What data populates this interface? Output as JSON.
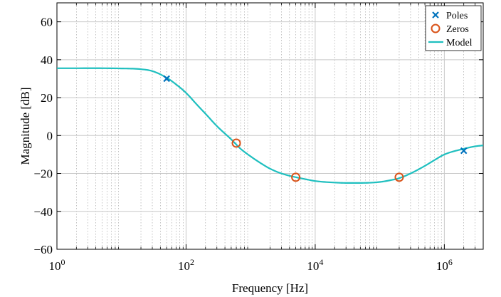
{
  "chart_data": {
    "type": "line",
    "xscale": "log",
    "xlim": [
      1,
      4000000
    ],
    "ylim": [
      -60,
      70
    ],
    "xticks": [
      {
        "value": 1,
        "base": "10",
        "exp": "0"
      },
      {
        "value": 100,
        "base": "10",
        "exp": "2"
      },
      {
        "value": 10000,
        "base": "10",
        "exp": "4"
      },
      {
        "value": 1000000,
        "base": "10",
        "exp": "6"
      }
    ],
    "yticks": [
      "-60",
      "-40",
      "-20",
      "0",
      "20",
      "40",
      "60"
    ],
    "xlabel": "Frequency [Hz]",
    "ylabel": "Magnitude [dB]",
    "grid": true,
    "legend_position": "top-right",
    "colors": {
      "poles": "#0072BD",
      "zeros": "#D95319",
      "model": "#1FBFBF"
    },
    "legend": [
      {
        "key": "poles",
        "label": "Poles"
      },
      {
        "key": "zeros",
        "label": "Zeros"
      },
      {
        "key": "model",
        "label": "Model"
      }
    ],
    "poles": [
      {
        "x": 50,
        "y": 30
      },
      {
        "x": 2000000,
        "y": -8
      }
    ],
    "zeros": [
      {
        "x": 600,
        "y": -4
      },
      {
        "x": 5000,
        "y": -22
      },
      {
        "x": 200000,
        "y": -22
      }
    ],
    "model": {
      "x": [
        1,
        10,
        20,
        30,
        50,
        70,
        100,
        150,
        200,
        300,
        500,
        700,
        1000,
        1500,
        2000,
        3000,
        5000,
        7000,
        10000,
        20000,
        30000,
        50000,
        100000,
        150000,
        200000,
        300000,
        500000,
        700000,
        1000000,
        2000000,
        3000000,
        4000000
      ],
      "y": [
        35.5,
        35.4,
        35,
        34,
        30.5,
        27,
        22.5,
        16,
        11.5,
        5,
        -2,
        -7,
        -11,
        -15,
        -17.5,
        -20,
        -22,
        -23,
        -24,
        -24.8,
        -25,
        -25,
        -24.5,
        -23.5,
        -22.5,
        -20,
        -16,
        -13,
        -10,
        -7,
        -5.7,
        -5.2
      ]
    }
  }
}
